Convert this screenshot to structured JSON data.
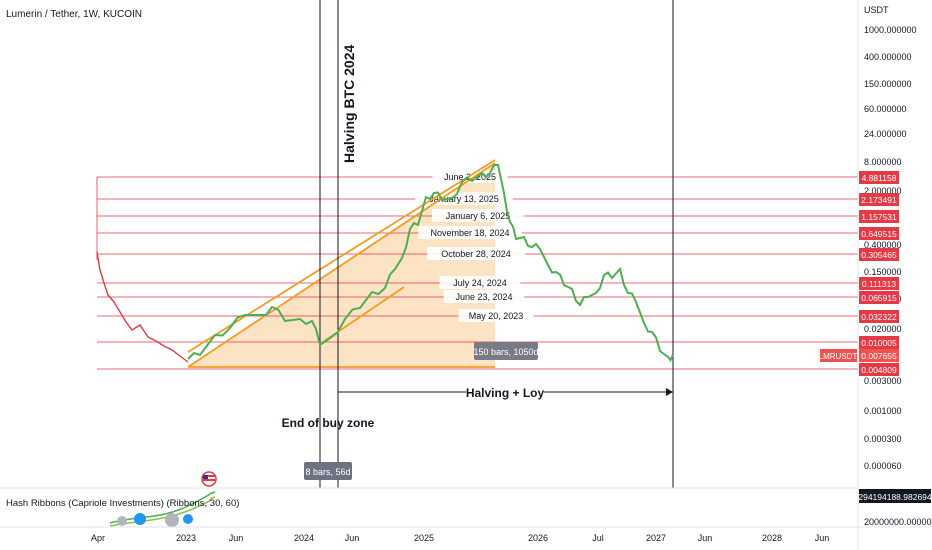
{
  "header": {
    "symbol_title": "Lumerin / Tether, 1W, KUCOIN"
  },
  "price_axis": {
    "unit": "USDT",
    "ticks": [
      "1000.000000",
      "400.000000",
      "150.000000",
      "60.000000",
      "24.000000",
      "8.000000",
      "2.000000",
      "0.400000",
      "0.150000",
      "0.060000",
      "0.020000",
      "0.003000",
      "0.001000",
      "0.000300",
      "0.000060"
    ],
    "current_price": "0.007655",
    "symbol_label": "LMRUSDT",
    "indicator_value": "294194188.982694",
    "indicator_base": "20000000.000000"
  },
  "time_axis": {
    "labels": [
      "Apr",
      "2023",
      "Jun",
      "2024",
      "Jun",
      "2025",
      "2026",
      "Jul",
      "2027",
      "Jun",
      "2028",
      "Jun"
    ]
  },
  "levels": [
    {
      "label": "June 2, 2025",
      "price": "4.881158"
    },
    {
      "label": "January 13, 2025",
      "price": "2.173491"
    },
    {
      "label": "January 6, 2025",
      "price": "1.157531"
    },
    {
      "label": "November 18, 2024",
      "price": "0.649515"
    },
    {
      "label": "October 28, 2024",
      "price": "0.305465"
    },
    {
      "label": "July 24, 2024",
      "price": "0.111313"
    },
    {
      "label": "June 23, 2024",
      "price": "0.065915"
    },
    {
      "label": "May 20, 2023",
      "price": "0.032322"
    },
    {
      "label": "",
      "price": "0.010005"
    },
    {
      "label": "",
      "price": "0.004809"
    }
  ],
  "annotations": {
    "halving_btc": "Halving BTC 2024",
    "end_buy_zone": "End of buy zone",
    "halving_loy": "Halving + Loy",
    "range_measure": "150 bars, 1050d",
    "cursor_measure": "8 bars, 56d"
  },
  "indicator": {
    "name": "Hash Ribbons (Capriole Investments) (Ribbons, 30, 60)"
  },
  "colors": {
    "level_line": "#e53945",
    "level_badge": "#e53945",
    "channel": "#f59a23",
    "zone_fill": "#fbd9b0",
    "price": "#4caf50",
    "vline": "#131722",
    "badge_gray": "#6b7280",
    "cur_price": "#ef5350"
  },
  "icons": {
    "flag": "us-flag-icon"
  }
}
